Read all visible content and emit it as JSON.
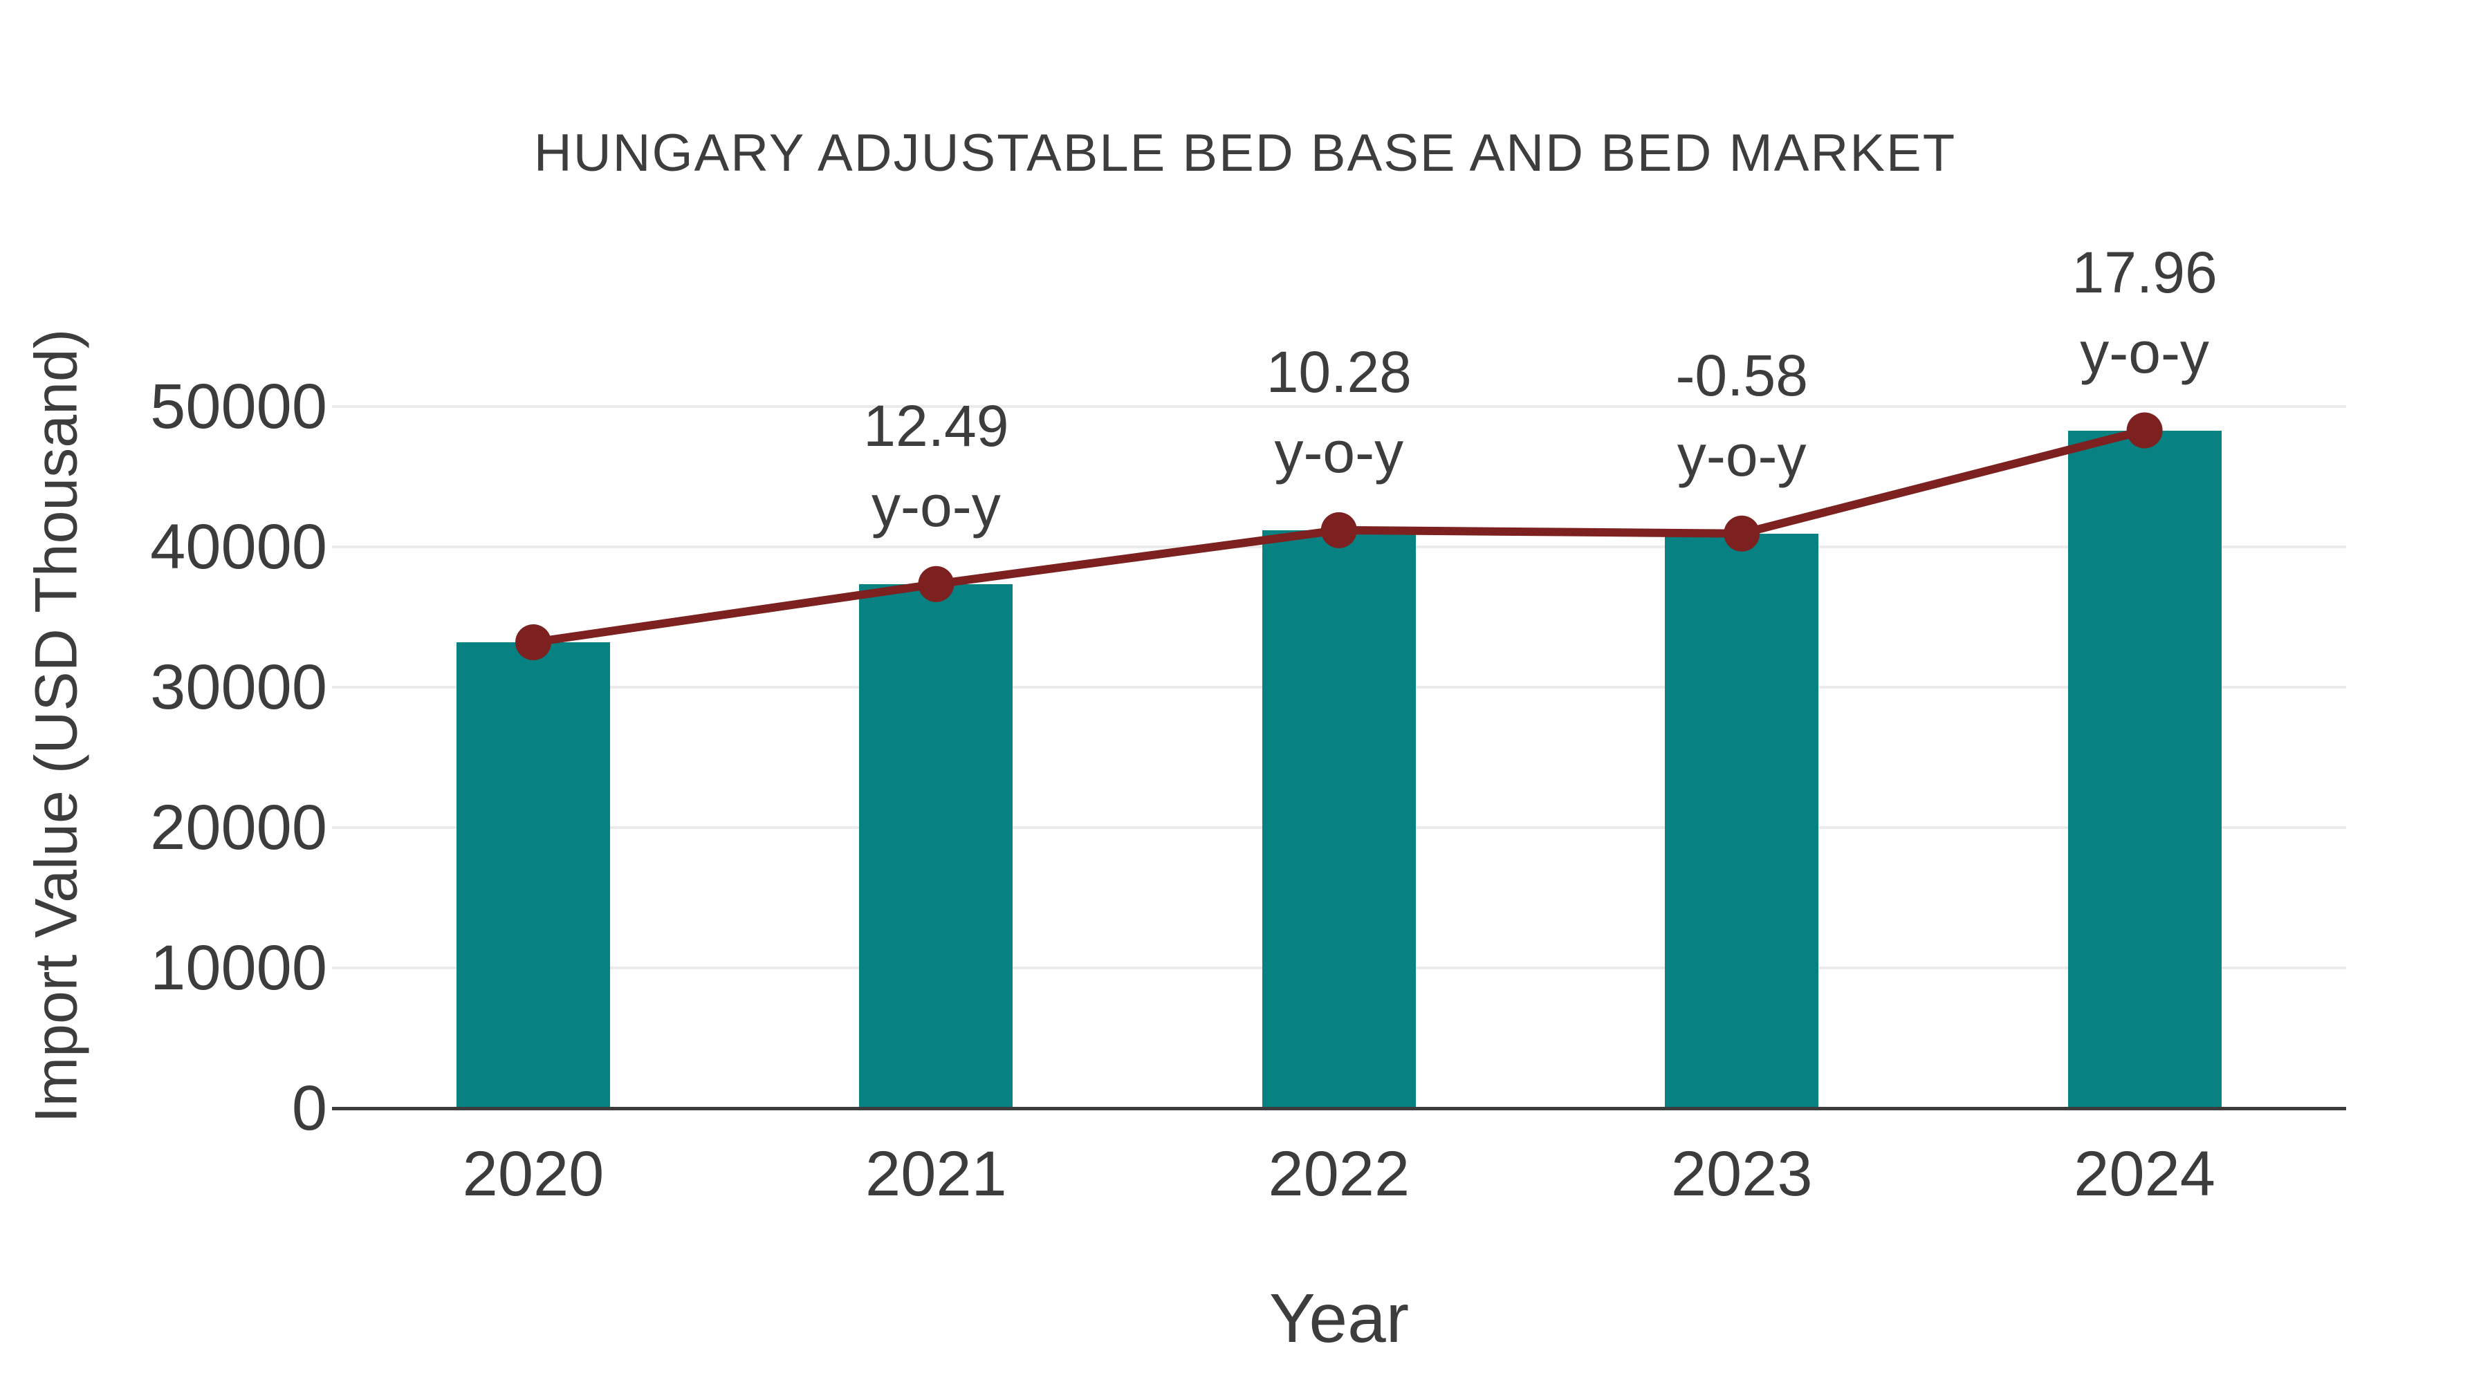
{
  "chart_data": {
    "type": "bar",
    "title": "HUNGARY ADJUSTABLE BED BASE AND BED MARKET",
    "xlabel": "Year",
    "ylabel": "Import Value (USD Thousand)",
    "categories": [
      "2020",
      "2021",
      "2022",
      "2023",
      "2024"
    ],
    "series": [
      {
        "name": "import-value-bars",
        "type": "bar",
        "color": "#078181",
        "values": [
          33200,
          37350,
          41190,
          40950,
          48300
        ]
      },
      {
        "name": "import-value-trend-line",
        "type": "line",
        "color": "#7d2020",
        "marker": "circle",
        "values": [
          33200,
          37350,
          41190,
          40950,
          48300
        ]
      }
    ],
    "point_labels": [
      {
        "category": "2020",
        "value": null,
        "suffix": null
      },
      {
        "category": "2021",
        "value": "12.49",
        "suffix": "y-o-y"
      },
      {
        "category": "2022",
        "value": "10.28",
        "suffix": "y-o-y"
      },
      {
        "category": "2023",
        "value": "-0.58",
        "suffix": "y-o-y"
      },
      {
        "category": "2024",
        "value": "17.96",
        "suffix": "y-o-y"
      }
    ],
    "y_ticks": [
      0,
      10000,
      20000,
      30000,
      40000,
      50000
    ],
    "ylim": [
      0,
      52500
    ],
    "grid": "horizontal",
    "grid_color": "#ebebeb",
    "axis_color": "#3c3c3c",
    "text_color": "#3d3d3d",
    "legend": "none"
  }
}
